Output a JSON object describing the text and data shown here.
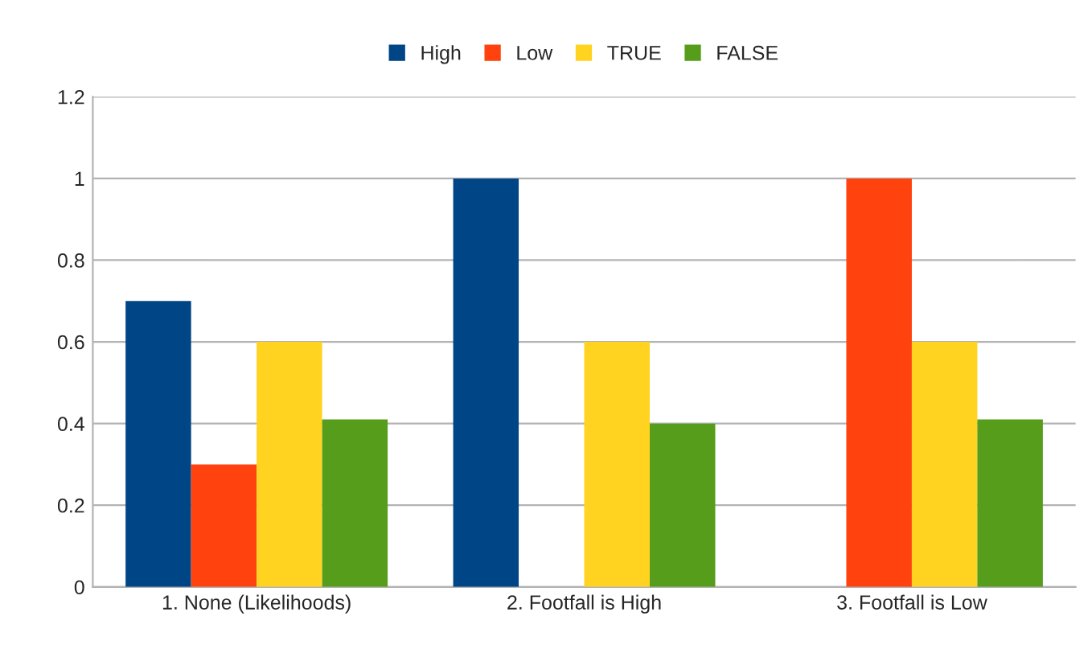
{
  "chart_data": {
    "type": "bar",
    "categories": [
      "1. None (Likelihoods)",
      "2. Footfall is High",
      "3. Footfall is Low"
    ],
    "series": [
      {
        "name": "High",
        "color": "#004586",
        "values": [
          0.7,
          1,
          null
        ]
      },
      {
        "name": "Low",
        "color": "#ff420e",
        "values": [
          0.3,
          null,
          1
        ]
      },
      {
        "name": "TRUE",
        "color": "#ffd320",
        "values": [
          0.6,
          0.6,
          0.6
        ]
      },
      {
        "name": "FALSE",
        "color": "#579d1c",
        "values": [
          0.41,
          0.4,
          0.41
        ]
      }
    ],
    "ylim": [
      0,
      1.2
    ],
    "yticks": [
      0,
      0.2,
      0.4,
      0.6,
      0.8,
      1,
      1.2
    ],
    "grid": "y",
    "legend": "top"
  }
}
